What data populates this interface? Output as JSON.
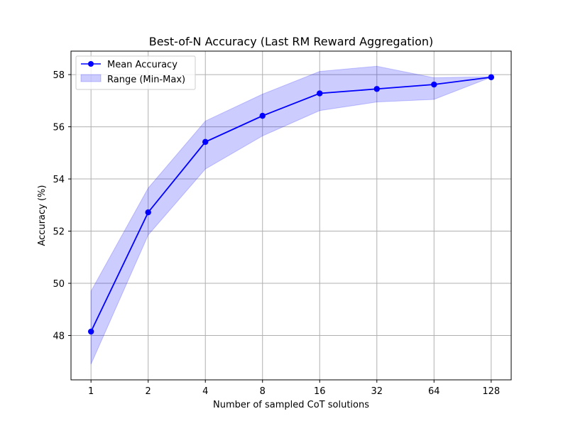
{
  "chart_data": {
    "type": "line",
    "title": "Best-of-N Accuracy (Last RM Reward Aggregation)",
    "xlabel": "Number of sampled CoT solutions",
    "ylabel": "Accuracy (%)",
    "x_scale": "log2",
    "x": [
      1,
      2,
      4,
      8,
      16,
      32,
      64,
      128
    ],
    "x_tick_labels": [
      "1",
      "2",
      "4",
      "8",
      "16",
      "32",
      "64",
      "128"
    ],
    "ylim": [
      46.3,
      58.9
    ],
    "y_ticks": [
      48,
      50,
      52,
      54,
      56,
      58
    ],
    "y_tick_labels": [
      "48",
      "50",
      "52",
      "54",
      "56",
      "58"
    ],
    "grid": true,
    "legend_position": "top-left",
    "series": [
      {
        "name": "Mean Accuracy",
        "kind": "line-markers",
        "color": "#0000ff",
        "values": [
          48.15,
          52.72,
          55.42,
          56.42,
          57.28,
          57.45,
          57.62,
          57.9
        ]
      },
      {
        "name": "Range (Min-Max)",
        "kind": "band",
        "color": "#0000ff",
        "opacity": 0.2,
        "min": [
          46.9,
          51.85,
          54.38,
          55.65,
          56.62,
          56.95,
          57.05,
          57.9
        ],
        "max": [
          49.7,
          53.65,
          56.22,
          57.25,
          58.12,
          58.32,
          57.88,
          57.92
        ]
      }
    ]
  }
}
